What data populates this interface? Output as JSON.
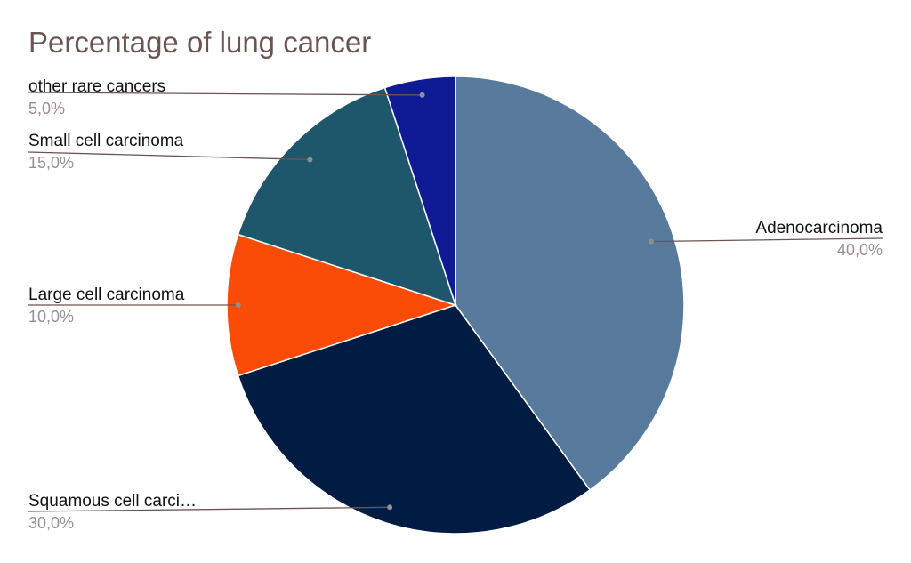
{
  "chart_data": {
    "type": "pie",
    "title": "Percentage of lung cancer",
    "slices": [
      {
        "label": "Adenocarcinoma",
        "display_label": "Adenocarcinoma",
        "value": 40,
        "value_label": "40,0%",
        "color": "#587a9c"
      },
      {
        "label": "Squamous cell carcinoma",
        "display_label": "Squamous cell carci…",
        "value": 30,
        "value_label": "30,0%",
        "color": "#001c43"
      },
      {
        "label": "Large cell carcinoma",
        "display_label": "Large cell carcinoma",
        "value": 10,
        "value_label": "10,0%",
        "color": "#fb4c07"
      },
      {
        "label": "Small cell carcinoma",
        "display_label": "Small cell carcinoma",
        "value": 15,
        "value_label": "15,0%",
        "color": "#1e566b"
      },
      {
        "label": "other rare cancers",
        "display_label": "other rare cancers",
        "value": 5,
        "value_label": "5,0%",
        "color": "#0f1b95"
      }
    ],
    "start_angle": "12 o'clock",
    "direction": "clockwise",
    "legend": "none"
  }
}
